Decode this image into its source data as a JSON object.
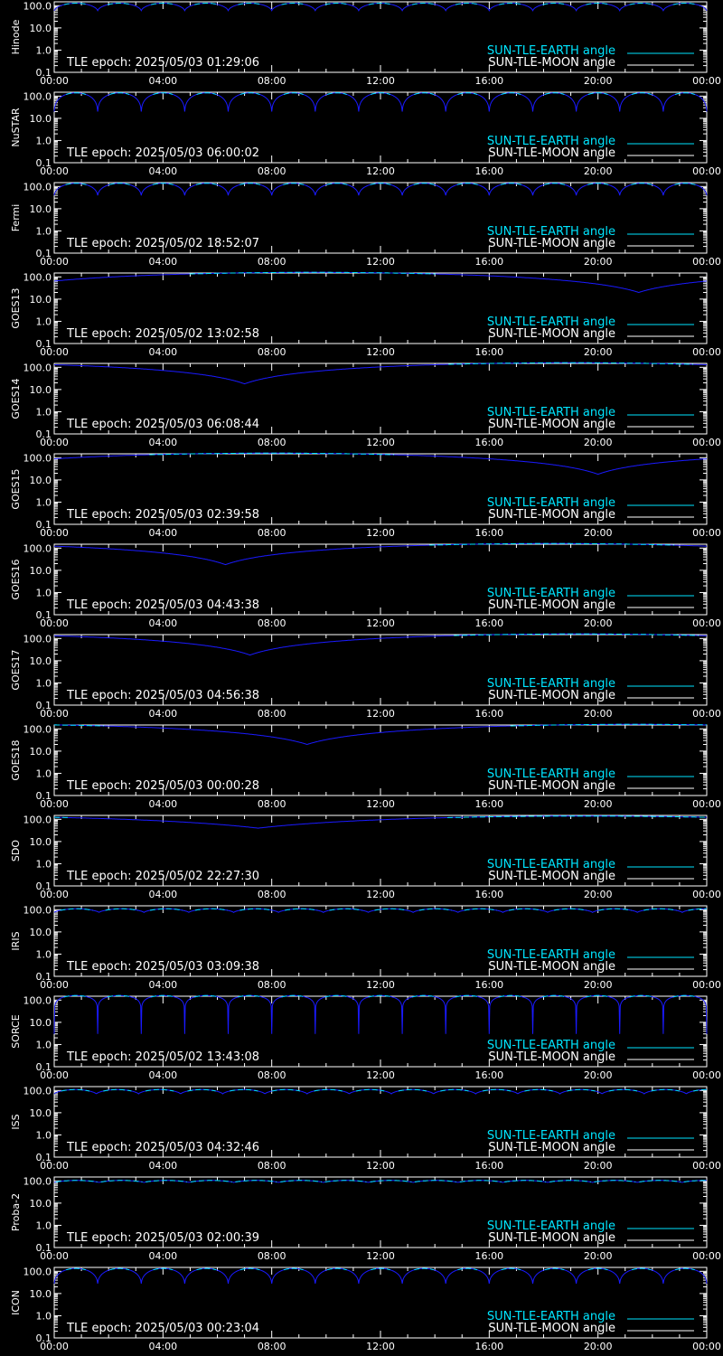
{
  "colors": {
    "background": "#000000",
    "frame": "#ffffff",
    "earth_angle": "#00e5ff",
    "moon_angle": "#ffffff",
    "sun_moon_curve": "#1a1aff"
  },
  "chart_data": [
    {
      "type": "line",
      "panel_label": "Hinode",
      "epoch_text": "TLE epoch: 2025/05/03 01:29:06",
      "y_scale": "log",
      "ylim": [
        0.1,
        150
      ],
      "yticks": [
        "100.0",
        "10.0",
        "1.0",
        "0.1"
      ],
      "x_ticks": [
        "00:00",
        "04:00",
        "08:00",
        "12:00",
        "16:00",
        "20:00",
        "00:00"
      ],
      "xlim": [
        0,
        24
      ],
      "shape": "orbital",
      "period_hours": 1.6,
      "max": 130,
      "min": 60,
      "legend": [
        "SUN-TLE-EARTH angle",
        "SUN-TLE-MOON angle"
      ]
    },
    {
      "type": "line",
      "panel_label": "NuSTAR",
      "epoch_text": "TLE epoch: 2025/05/03 06:00:02",
      "y_scale": "log",
      "ylim": [
        0.1,
        150
      ],
      "yticks": [
        "100.0",
        "10.0",
        "1.0",
        "0.1"
      ],
      "x_ticks": [
        "00:00",
        "04:00",
        "08:00",
        "12:00",
        "16:00",
        "20:00",
        "00:00"
      ],
      "xlim": [
        0,
        24
      ],
      "shape": "orbital",
      "period_hours": 1.6,
      "max": 140,
      "min": 20,
      "legend": [
        "SUN-TLE-EARTH angle",
        "SUN-TLE-MOON angle"
      ]
    },
    {
      "type": "line",
      "panel_label": "Fermi",
      "epoch_text": "TLE epoch: 2025/05/02 18:52:07",
      "y_scale": "log",
      "ylim": [
        0.1,
        150
      ],
      "yticks": [
        "100.0",
        "10.0",
        "1.0",
        "0.1"
      ],
      "x_ticks": [
        "00:00",
        "04:00",
        "08:00",
        "12:00",
        "16:00",
        "20:00",
        "00:00"
      ],
      "xlim": [
        0,
        24
      ],
      "shape": "orbital",
      "period_hours": 1.6,
      "max": 140,
      "min": 40,
      "legend": [
        "SUN-TLE-EARTH angle",
        "SUN-TLE-MOON angle"
      ]
    },
    {
      "type": "line",
      "panel_label": "GOES13",
      "epoch_text": "TLE epoch: 2025/05/02 13:02:58",
      "y_scale": "log",
      "ylim": [
        0.1,
        150
      ],
      "yticks": [
        "100.0",
        "10.0",
        "1.0",
        "0.1"
      ],
      "x_ticks": [
        "00:00",
        "04:00",
        "08:00",
        "12:00",
        "16:00",
        "20:00",
        "00:00"
      ],
      "xlim": [
        0,
        24
      ],
      "shape": "geo",
      "max": 160,
      "min": 20,
      "min_time": 21.5,
      "legend": [
        "SUN-TLE-EARTH angle",
        "SUN-TLE-MOON angle"
      ]
    },
    {
      "type": "line",
      "panel_label": "GOES14",
      "epoch_text": "TLE epoch: 2025/05/03 06:08:44",
      "y_scale": "log",
      "ylim": [
        0.1,
        150
      ],
      "yticks": [
        "100.0",
        "10.0",
        "1.0",
        "0.1"
      ],
      "x_ticks": [
        "00:00",
        "04:00",
        "08:00",
        "12:00",
        "16:00",
        "20:00",
        "00:00"
      ],
      "xlim": [
        0,
        24
      ],
      "shape": "geo",
      "max": 160,
      "min": 18,
      "min_time": 7.0,
      "legend": [
        "SUN-TLE-EARTH angle",
        "SUN-TLE-MOON angle"
      ]
    },
    {
      "type": "line",
      "panel_label": "GOES15",
      "epoch_text": "TLE epoch: 2025/05/03 02:39:58",
      "y_scale": "log",
      "ylim": [
        0.1,
        150
      ],
      "yticks": [
        "100.0",
        "10.0",
        "1.0",
        "0.1"
      ],
      "x_ticks": [
        "00:00",
        "04:00",
        "08:00",
        "12:00",
        "16:00",
        "20:00",
        "00:00"
      ],
      "xlim": [
        0,
        24
      ],
      "shape": "geo",
      "max": 160,
      "min": 18,
      "min_time": 20.0,
      "legend": [
        "SUN-TLE-EARTH angle",
        "SUN-TLE-MOON angle"
      ]
    },
    {
      "type": "line",
      "panel_label": "GOES16",
      "epoch_text": "TLE epoch: 2025/05/03 04:43:38",
      "y_scale": "log",
      "ylim": [
        0.1,
        150
      ],
      "yticks": [
        "100.0",
        "10.0",
        "1.0",
        "0.1"
      ],
      "x_ticks": [
        "00:00",
        "04:00",
        "08:00",
        "12:00",
        "16:00",
        "20:00",
        "00:00"
      ],
      "xlim": [
        0,
        24
      ],
      "shape": "geo",
      "max": 160,
      "min": 18,
      "min_time": 6.3,
      "legend": [
        "SUN-TLE-EARTH angle",
        "SUN-TLE-MOON angle"
      ]
    },
    {
      "type": "line",
      "panel_label": "GOES17",
      "epoch_text": "TLE epoch: 2025/05/03 04:56:38",
      "y_scale": "log",
      "ylim": [
        0.1,
        150
      ],
      "yticks": [
        "100.0",
        "10.0",
        "1.0",
        "0.1"
      ],
      "x_ticks": [
        "00:00",
        "04:00",
        "08:00",
        "12:00",
        "16:00",
        "20:00",
        "00:00"
      ],
      "xlim": [
        0,
        24
      ],
      "shape": "geo",
      "max": 160,
      "min": 18,
      "min_time": 7.2,
      "legend": [
        "SUN-TLE-EARTH angle",
        "SUN-TLE-MOON angle"
      ]
    },
    {
      "type": "line",
      "panel_label": "GOES18",
      "epoch_text": "TLE epoch: 2025/05/03 00:00:28",
      "y_scale": "log",
      "ylim": [
        0.1,
        150
      ],
      "yticks": [
        "100.0",
        "10.0",
        "1.0",
        "0.1"
      ],
      "x_ticks": [
        "00:00",
        "04:00",
        "08:00",
        "12:00",
        "16:00",
        "20:00",
        "00:00"
      ],
      "xlim": [
        0,
        24
      ],
      "shape": "geo",
      "max": 160,
      "min": 20,
      "min_time": 9.3,
      "legend": [
        "SUN-TLE-EARTH angle",
        "SUN-TLE-MOON angle"
      ]
    },
    {
      "type": "line",
      "panel_label": "SDO",
      "epoch_text": "TLE epoch: 2025/05/02 22:27:30",
      "y_scale": "log",
      "ylim": [
        0.1,
        150
      ],
      "yticks": [
        "100.0",
        "10.0",
        "1.0",
        "0.1"
      ],
      "x_ticks": [
        "00:00",
        "04:00",
        "08:00",
        "12:00",
        "16:00",
        "20:00",
        "00:00"
      ],
      "xlim": [
        0,
        24
      ],
      "shape": "geo",
      "max": 140,
      "min": 40,
      "min_time": 7.5,
      "legend": [
        "SUN-TLE-EARTH angle",
        "SUN-TLE-MOON angle"
      ]
    },
    {
      "type": "line",
      "panel_label": "IRIS",
      "epoch_text": "TLE epoch: 2025/05/03 03:09:38",
      "y_scale": "log",
      "ylim": [
        0.1,
        150
      ],
      "yticks": [
        "100.0",
        "10.0",
        "1.0",
        "0.1"
      ],
      "x_ticks": [
        "00:00",
        "04:00",
        "08:00",
        "12:00",
        "16:00",
        "20:00",
        "00:00"
      ],
      "xlim": [
        0,
        24
      ],
      "shape": "orbital",
      "period_hours": 1.65,
      "max": 110,
      "min": 75,
      "legend": [
        "SUN-TLE-EARTH angle",
        "SUN-TLE-MOON angle"
      ]
    },
    {
      "type": "line",
      "panel_label": "SORCE",
      "epoch_text": "TLE epoch: 2025/05/02 13:43:08",
      "y_scale": "log",
      "ylim": [
        0.1,
        150
      ],
      "yticks": [
        "100.0",
        "10.0",
        "1.0",
        "0.1"
      ],
      "x_ticks": [
        "00:00",
        "04:00",
        "08:00",
        "12:00",
        "16:00",
        "20:00",
        "00:00"
      ],
      "xlim": [
        0,
        24
      ],
      "shape": "orbital",
      "period_hours": 1.6,
      "max": 160,
      "min": 3,
      "legend": [
        "SUN-TLE-EARTH angle",
        "SUN-TLE-MOON angle"
      ]
    },
    {
      "type": "line",
      "panel_label": "ISS",
      "epoch_text": "TLE epoch: 2025/05/03 04:32:46",
      "y_scale": "log",
      "ylim": [
        0.1,
        150
      ],
      "yticks": [
        "100.0",
        "10.0",
        "1.0",
        "0.1"
      ],
      "x_ticks": [
        "00:00",
        "04:00",
        "08:00",
        "12:00",
        "16:00",
        "20:00",
        "00:00"
      ],
      "xlim": [
        0,
        24
      ],
      "shape": "orbital",
      "period_hours": 1.55,
      "max": 110,
      "min": 70,
      "legend": [
        "SUN-TLE-EARTH angle",
        "SUN-TLE-MOON angle"
      ]
    },
    {
      "type": "line",
      "panel_label": "Proba-2",
      "epoch_text": "TLE epoch: 2025/05/03 02:00:39",
      "y_scale": "log",
      "ylim": [
        0.1,
        150
      ],
      "yticks": [
        "100.0",
        "10.0",
        "1.0",
        "0.1"
      ],
      "x_ticks": [
        "00:00",
        "04:00",
        "08:00",
        "12:00",
        "16:00",
        "20:00",
        "00:00"
      ],
      "xlim": [
        0,
        24
      ],
      "shape": "orbital",
      "period_hours": 1.65,
      "max": 105,
      "min": 85,
      "legend": [
        "SUN-TLE-EARTH angle",
        "SUN-TLE-MOON angle"
      ]
    },
    {
      "type": "line",
      "panel_label": "ICON",
      "epoch_text": "TLE epoch: 2025/05/03 00:23:04",
      "y_scale": "log",
      "ylim": [
        0.1,
        150
      ],
      "yticks": [
        "100.0",
        "10.0",
        "1.0",
        "0.1"
      ],
      "x_ticks": [
        "00:00",
        "04:00",
        "08:00",
        "12:00",
        "16:00",
        "20:00",
        "00:00"
      ],
      "xlim": [
        0,
        24
      ],
      "shape": "orbital",
      "period_hours": 1.6,
      "max": 135,
      "min": 28,
      "legend": [
        "SUN-TLE-EARTH angle",
        "SUN-TLE-MOON angle"
      ]
    }
  ]
}
